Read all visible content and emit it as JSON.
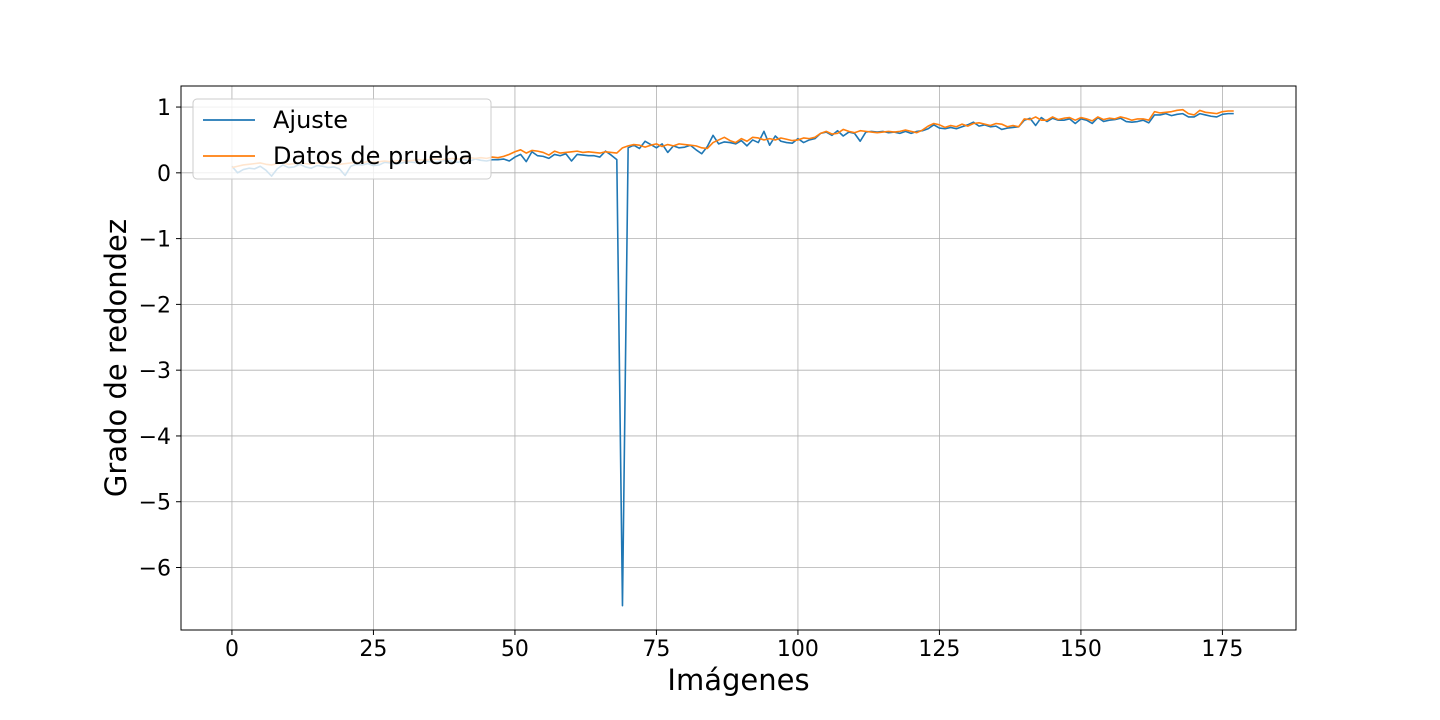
{
  "chart_data": {
    "type": "line",
    "title": "",
    "xlabel": "Imágenes",
    "ylabel": "Grado de redondez",
    "xlim": [
      -9,
      188
    ],
    "ylim": [
      -6.95,
      1.32
    ],
    "xticks": [
      0,
      25,
      50,
      75,
      100,
      125,
      150,
      175
    ],
    "yticks": [
      1,
      0,
      -1,
      -2,
      -3,
      -4,
      -5,
      -6
    ],
    "ytick_labels": [
      "1",
      "0",
      "−1",
      "−2",
      "−3",
      "−4",
      "−5",
      "−6"
    ],
    "grid": true,
    "legend": "upper-left",
    "series": [
      {
        "name": "Ajuste",
        "color": "#1f77b4",
        "values": [
          0.1,
          0.0,
          0.05,
          0.07,
          0.06,
          0.1,
          0.04,
          -0.05,
          0.06,
          0.12,
          0.08,
          0.09,
          0.13,
          0.09,
          0.07,
          0.11,
          0.1,
          0.08,
          0.09,
          0.06,
          -0.04,
          0.1,
          0.13,
          0.12,
          0.14,
          0.11,
          0.12,
          0.16,
          0.15,
          0.13,
          0.15,
          0.17,
          0.16,
          0.15,
          0.18,
          0.17,
          0.16,
          0.18,
          0.19,
          0.17,
          0.16,
          0.2,
          0.18,
          0.21,
          0.19,
          0.18,
          0.2,
          0.2,
          0.21,
          0.18,
          0.24,
          0.28,
          0.17,
          0.32,
          0.26,
          0.25,
          0.22,
          0.28,
          0.26,
          0.29,
          0.18,
          0.28,
          0.27,
          0.26,
          0.26,
          0.24,
          0.33,
          0.27,
          0.2,
          -6.58,
          0.38,
          0.42,
          0.37,
          0.48,
          0.43,
          0.38,
          0.44,
          0.31,
          0.41,
          0.38,
          0.39,
          0.42,
          0.35,
          0.29,
          0.4,
          0.57,
          0.44,
          0.47,
          0.46,
          0.44,
          0.49,
          0.41,
          0.5,
          0.46,
          0.63,
          0.42,
          0.56,
          0.48,
          0.46,
          0.45,
          0.52,
          0.46,
          0.5,
          0.52,
          0.6,
          0.62,
          0.57,
          0.64,
          0.56,
          0.62,
          0.6,
          0.48,
          0.62,
          0.63,
          0.62,
          0.63,
          0.61,
          0.62,
          0.6,
          0.63,
          0.6,
          0.63,
          0.64,
          0.67,
          0.73,
          0.68,
          0.67,
          0.69,
          0.67,
          0.7,
          0.73,
          0.77,
          0.71,
          0.73,
          0.7,
          0.71,
          0.66,
          0.68,
          0.69,
          0.7,
          0.8,
          0.83,
          0.72,
          0.84,
          0.78,
          0.83,
          0.8,
          0.8,
          0.82,
          0.75,
          0.82,
          0.8,
          0.75,
          0.84,
          0.78,
          0.8,
          0.81,
          0.83,
          0.78,
          0.77,
          0.78,
          0.8,
          0.76,
          0.88,
          0.88,
          0.9,
          0.87,
          0.89,
          0.9,
          0.85,
          0.85,
          0.9,
          0.88,
          0.86,
          0.85,
          0.89,
          0.9,
          0.9
        ]
      },
      {
        "name": "Datos de prueba",
        "color": "#ff7f0e",
        "values": [
          0.08,
          0.1,
          0.12,
          0.13,
          0.14,
          0.15,
          0.13,
          0.12,
          0.14,
          0.15,
          0.13,
          0.14,
          0.15,
          0.14,
          0.13,
          0.15,
          0.14,
          0.15,
          0.14,
          0.13,
          0.14,
          0.15,
          0.16,
          0.15,
          0.17,
          0.16,
          0.17,
          0.18,
          0.17,
          0.18,
          0.19,
          0.18,
          0.19,
          0.2,
          0.19,
          0.2,
          0.21,
          0.2,
          0.21,
          0.22,
          0.21,
          0.22,
          0.23,
          0.22,
          0.23,
          0.22,
          0.24,
          0.23,
          0.25,
          0.28,
          0.32,
          0.35,
          0.3,
          0.34,
          0.33,
          0.31,
          0.27,
          0.33,
          0.3,
          0.31,
          0.32,
          0.33,
          0.31,
          0.32,
          0.31,
          0.3,
          0.32,
          0.31,
          0.3,
          0.38,
          0.41,
          0.43,
          0.42,
          0.39,
          0.42,
          0.44,
          0.4,
          0.43,
          0.41,
          0.44,
          0.43,
          0.42,
          0.41,
          0.38,
          0.37,
          0.46,
          0.5,
          0.54,
          0.49,
          0.46,
          0.52,
          0.48,
          0.54,
          0.53,
          0.5,
          0.52,
          0.5,
          0.53,
          0.51,
          0.49,
          0.5,
          0.53,
          0.52,
          0.54,
          0.6,
          0.63,
          0.59,
          0.6,
          0.66,
          0.63,
          0.61,
          0.64,
          0.63,
          0.62,
          0.61,
          0.62,
          0.63,
          0.62,
          0.63,
          0.65,
          0.63,
          0.61,
          0.65,
          0.71,
          0.75,
          0.73,
          0.69,
          0.72,
          0.7,
          0.74,
          0.71,
          0.75,
          0.76,
          0.74,
          0.72,
          0.75,
          0.74,
          0.7,
          0.72,
          0.7,
          0.82,
          0.81,
          0.85,
          0.8,
          0.8,
          0.85,
          0.81,
          0.83,
          0.84,
          0.8,
          0.84,
          0.82,
          0.79,
          0.85,
          0.81,
          0.83,
          0.82,
          0.85,
          0.83,
          0.8,
          0.82,
          0.82,
          0.8,
          0.93,
          0.91,
          0.92,
          0.93,
          0.95,
          0.96,
          0.9,
          0.88,
          0.95,
          0.92,
          0.91,
          0.9,
          0.93,
          0.94,
          0.94
        ]
      }
    ]
  }
}
